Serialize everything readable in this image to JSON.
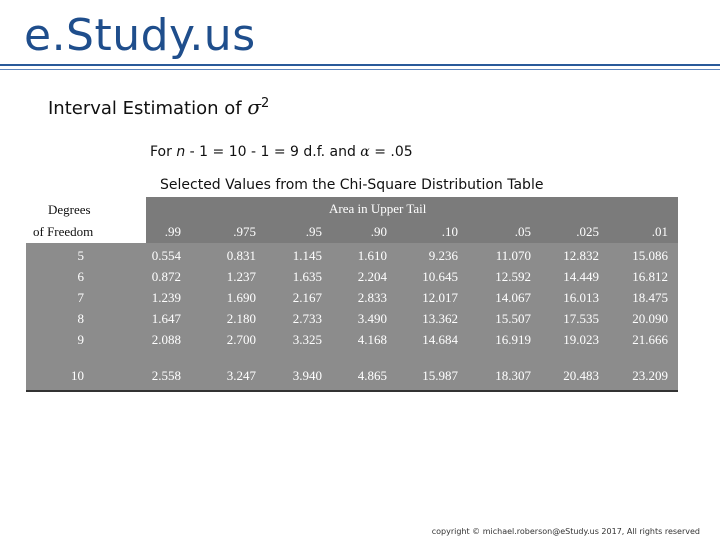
{
  "brand": "e.Study.us",
  "heading": {
    "text": "Interval Estimation of ",
    "symbol": "σ",
    "power": "2"
  },
  "subline": {
    "n": "n",
    "part1": " - 1 = 10 - 1 = 9 d.f. and ",
    "alpha": "α",
    "part2": " = .05",
    "prefix": "For "
  },
  "caption": "Selected Values from the Chi-Square Distribution Table",
  "table": {
    "row_header_1": "Degrees",
    "row_header_2": "of Freedom",
    "group_header": "Area in Upper Tail",
    "columns": [
      ".99",
      ".975",
      ".95",
      ".90",
      ".10",
      ".05",
      ".025",
      ".01"
    ],
    "rows": [
      {
        "df": "5",
        "values": [
          "0.554",
          "0.831",
          "1.145",
          "1.610",
          "9.236",
          "11.070",
          "12.832",
          "15.086"
        ]
      },
      {
        "df": "6",
        "values": [
          "0.872",
          "1.237",
          "1.635",
          "2.204",
          "10.645",
          "12.592",
          "14.449",
          "16.812"
        ]
      },
      {
        "df": "7",
        "values": [
          "1.239",
          "1.690",
          "2.167",
          "2.833",
          "12.017",
          "14.067",
          "16.013",
          "18.475"
        ]
      },
      {
        "df": "8",
        "values": [
          "1.647",
          "2.180",
          "2.733",
          "3.490",
          "13.362",
          "15.507",
          "17.535",
          "20.090"
        ]
      },
      {
        "df": "9",
        "values": [
          "2.088",
          "2.700",
          "3.325",
          "4.168",
          "14.684",
          "16.919",
          "19.023",
          "21.666"
        ]
      },
      {
        "df": "10",
        "values": [
          "2.558",
          "3.247",
          "3.940",
          "4.865",
          "15.987",
          "18.307",
          "20.483",
          "23.209"
        ]
      }
    ]
  },
  "copyright": "copyright © michael.roberson@eStudy.us 2017, All rights reserved"
}
